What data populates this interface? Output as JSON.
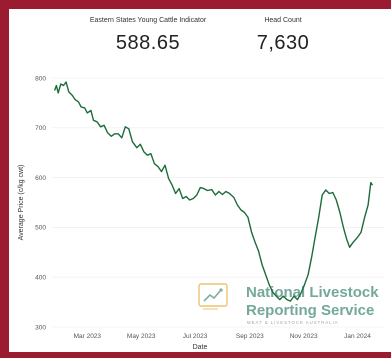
{
  "kpis": [
    {
      "label": "Eastern States Young Cattle Indicator",
      "value": "588.65"
    },
    {
      "label": "Head Count",
      "value": "7,630"
    }
  ],
  "watermark": {
    "line1": "National Livestock",
    "line2": "Reporting Service",
    "line3": "MEAT & LIVESTOCK AUSTRALIA"
  },
  "colors": {
    "frame": "#9b1b30",
    "line": "#1e6b3a",
    "logo": "#5c9a8a"
  },
  "chart_data": {
    "type": "line",
    "title": "",
    "xlabel": "Date",
    "ylabel": "Average Price (c/kg cwt)",
    "ylim": [
      300,
      800
    ],
    "yticks": [
      300,
      400,
      500,
      600,
      700,
      800
    ],
    "xlim": [
      "2023-01-20",
      "2024-01-31"
    ],
    "xticks": [
      {
        "date": "2023-03-01",
        "label": "Mar 2023"
      },
      {
        "date": "2023-05-01",
        "label": "May 2023"
      },
      {
        "date": "2023-07-01",
        "label": "Jul 2023"
      },
      {
        "date": "2023-09-01",
        "label": "Sep 2023"
      },
      {
        "date": "2023-11-01",
        "label": "Nov 2023"
      },
      {
        "date": "2024-01-01",
        "label": "Jan 2024"
      }
    ],
    "grid": true,
    "series": [
      {
        "points": [
          [
            "2023-01-23",
            775
          ],
          [
            "2023-01-25",
            785
          ],
          [
            "2023-01-27",
            770
          ],
          [
            "2023-01-30",
            788
          ],
          [
            "2023-02-02",
            785
          ],
          [
            "2023-02-05",
            792
          ],
          [
            "2023-02-08",
            772
          ],
          [
            "2023-02-12",
            765
          ],
          [
            "2023-02-15",
            757
          ],
          [
            "2023-02-19",
            752
          ],
          [
            "2023-02-22",
            742
          ],
          [
            "2023-02-26",
            740
          ],
          [
            "2023-03-01",
            730
          ],
          [
            "2023-03-05",
            735
          ],
          [
            "2023-03-08",
            715
          ],
          [
            "2023-03-12",
            712
          ],
          [
            "2023-03-16",
            702
          ],
          [
            "2023-03-20",
            705
          ],
          [
            "2023-03-24",
            690
          ],
          [
            "2023-03-28",
            683
          ],
          [
            "2023-04-01",
            688
          ],
          [
            "2023-04-05",
            688
          ],
          [
            "2023-04-09",
            680
          ],
          [
            "2023-04-13",
            702
          ],
          [
            "2023-04-17",
            698
          ],
          [
            "2023-04-21",
            672
          ],
          [
            "2023-04-26",
            660
          ],
          [
            "2023-04-30",
            667
          ],
          [
            "2023-05-04",
            652
          ],
          [
            "2023-05-08",
            645
          ],
          [
            "2023-05-12",
            648
          ],
          [
            "2023-05-16",
            628
          ],
          [
            "2023-05-20",
            622
          ],
          [
            "2023-05-24",
            612
          ],
          [
            "2023-05-28",
            625
          ],
          [
            "2023-06-01",
            598
          ],
          [
            "2023-06-05",
            585
          ],
          [
            "2023-06-09",
            568
          ],
          [
            "2023-06-13",
            578
          ],
          [
            "2023-06-17",
            558
          ],
          [
            "2023-06-21",
            562
          ],
          [
            "2023-06-25",
            555
          ],
          [
            "2023-06-29",
            558
          ],
          [
            "2023-07-03",
            565
          ],
          [
            "2023-07-07",
            580
          ],
          [
            "2023-07-11",
            578
          ],
          [
            "2023-07-15",
            574
          ],
          [
            "2023-07-20",
            576
          ],
          [
            "2023-07-24",
            565
          ],
          [
            "2023-07-28",
            572
          ],
          [
            "2023-08-01",
            566
          ],
          [
            "2023-08-05",
            572
          ],
          [
            "2023-08-09",
            568
          ],
          [
            "2023-08-14",
            560
          ],
          [
            "2023-08-18",
            545
          ],
          [
            "2023-08-22",
            535
          ],
          [
            "2023-08-26",
            530
          ],
          [
            "2023-08-30",
            520
          ],
          [
            "2023-09-03",
            490
          ],
          [
            "2023-09-07",
            470
          ],
          [
            "2023-09-11",
            452
          ],
          [
            "2023-09-15",
            425
          ],
          [
            "2023-09-19",
            405
          ],
          [
            "2023-09-23",
            385
          ],
          [
            "2023-09-27",
            370
          ],
          [
            "2023-10-01",
            362
          ],
          [
            "2023-10-05",
            355
          ],
          [
            "2023-10-09",
            362
          ],
          [
            "2023-10-13",
            355
          ],
          [
            "2023-10-17",
            352
          ],
          [
            "2023-10-21",
            362
          ],
          [
            "2023-10-25",
            355
          ],
          [
            "2023-10-29",
            368
          ],
          [
            "2023-11-02",
            385
          ],
          [
            "2023-11-06",
            405
          ],
          [
            "2023-11-10",
            440
          ],
          [
            "2023-11-14",
            480
          ],
          [
            "2023-11-18",
            520
          ],
          [
            "2023-11-22",
            565
          ],
          [
            "2023-11-26",
            575
          ],
          [
            "2023-11-30",
            568
          ],
          [
            "2023-12-04",
            570
          ],
          [
            "2023-12-08",
            555
          ],
          [
            "2023-12-12",
            530
          ],
          [
            "2023-12-16",
            500
          ],
          [
            "2023-12-20",
            475
          ],
          [
            "2023-12-23",
            460
          ],
          [
            "2023-12-27",
            470
          ],
          [
            "2024-01-01",
            480
          ],
          [
            "2024-01-05",
            490
          ],
          [
            "2024-01-09",
            520
          ],
          [
            "2024-01-13",
            545
          ],
          [
            "2024-01-16",
            590
          ],
          [
            "2024-01-18",
            585
          ]
        ]
      }
    ]
  }
}
